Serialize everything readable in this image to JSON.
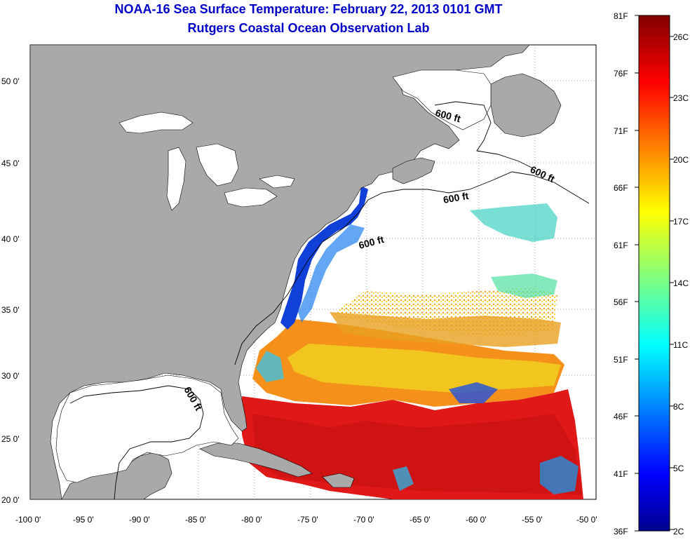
{
  "title": {
    "line1": "NOAA-16 Sea Surface Temperature:  February 22, 2013 0101 GMT",
    "line2": "Rutgers Coastal Ocean Observation Lab"
  },
  "map": {
    "lat_ticks": [
      "50 0'",
      "45 0'",
      "40 0'",
      "35 0'",
      "30 0'",
      "25 0'",
      "20 0'"
    ],
    "lon_ticks": [
      "-100 0'",
      "-95 0'",
      "-90 0'",
      "-85 0'",
      "-80 0'",
      "-75 0'",
      "-70 0'",
      "-65 0'",
      "-60 0'",
      "-55 0'",
      "-50 0'"
    ],
    "contour_labels": [
      "600 ft",
      "600 ft",
      "600 ft",
      "600 ft",
      "600 ft"
    ],
    "colors": {
      "land": "#a9a9a9",
      "no_data": "#ffffff"
    }
  },
  "colorbar": {
    "fahrenheit_labels": [
      "81F",
      "76F",
      "71F",
      "66F",
      "61F",
      "56F",
      "51F",
      "46F",
      "41F",
      "36F"
    ],
    "celsius_labels": [
      "26C",
      "23C",
      "20C",
      "17C",
      "14C",
      "11C",
      "8C",
      "5C",
      "2C"
    ],
    "colormap": "jet"
  }
}
